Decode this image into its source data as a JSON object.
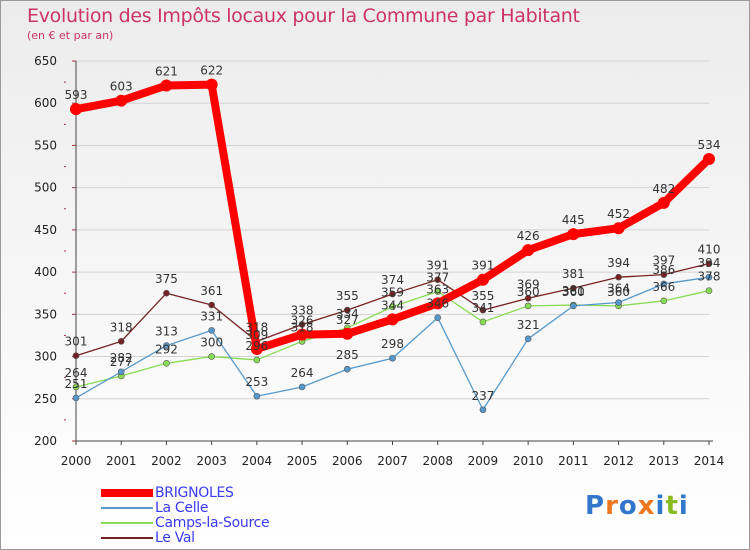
{
  "chart_data": {
    "type": "line",
    "title": "Evolution des Impôts locaux pour la Commune par Habitant",
    "subtitle": "(en € et par an)",
    "xlabel": "",
    "ylabel": "",
    "categories": [
      "2000",
      "2001",
      "2002",
      "2003",
      "2004",
      "2005",
      "2006",
      "2007",
      "2008",
      "2009",
      "2010",
      "2011",
      "2012",
      "2013",
      "2014"
    ],
    "ylim": [
      200,
      650
    ],
    "yticks": [
      200,
      250,
      300,
      350,
      400,
      450,
      500,
      550,
      600,
      650
    ],
    "grid": "horizontal",
    "series": [
      {
        "name": "BRIGNOLES",
        "color": "#ff0000",
        "values": [
          593,
          603,
          621,
          622,
          309,
          326,
          327,
          344,
          363,
          391,
          426,
          445,
          452,
          482,
          534
        ]
      },
      {
        "name": "La Celle",
        "color": "#5599cc",
        "values": [
          251,
          282,
          313,
          331,
          253,
          264,
          285,
          298,
          346,
          237,
          321,
          360,
          364,
          386,
          394
        ]
      },
      {
        "name": "Camps-la-Source",
        "color": "#88dd55",
        "values": [
          264,
          277,
          292,
          300,
          296,
          318,
          334,
          359,
          377,
          341,
          360,
          361,
          360,
          366,
          378
        ]
      },
      {
        "name": "Le Val",
        "color": "#772222",
        "values": [
          301,
          318,
          375,
          361,
          318,
          338,
          355,
          374,
          391,
          355,
          369,
          381,
          394,
          397,
          410
        ]
      }
    ]
  },
  "legend": {
    "items": [
      "BRIGNOLES",
      "La Celle",
      "Camps-la-Source",
      "Le Val"
    ]
  },
  "logo": {
    "text": "Proxiti",
    "colors": [
      "#3377cc",
      "#ee7722",
      "#3377cc",
      "#ee7722",
      "#3377cc",
      "#88bb22",
      "#3377cc"
    ]
  }
}
